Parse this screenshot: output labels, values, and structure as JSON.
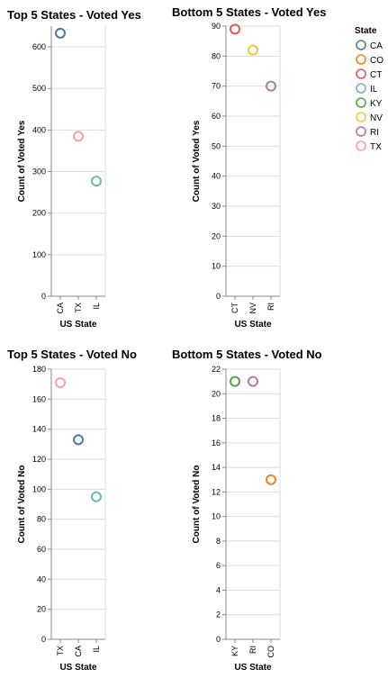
{
  "legend": {
    "title": "State",
    "items": [
      {
        "label": "CA",
        "color": "#4c78a8"
      },
      {
        "label": "CO",
        "color": "#f58518"
      },
      {
        "label": "CT",
        "color": "#e45756"
      },
      {
        "label": "IL",
        "color": "#72b7b2"
      },
      {
        "label": "KY",
        "color": "#54a24b"
      },
      {
        "label": "NV",
        "color": "#eeca3b"
      },
      {
        "label": "RI",
        "color": "#b279a2"
      },
      {
        "label": "TX",
        "color": "#ff9da6"
      }
    ]
  },
  "chart_data": [
    {
      "type": "scatter",
      "title": "Top 5 States - Voted Yes",
      "xlabel": "US State",
      "ylabel": "Count of Voted Yes",
      "categories": [
        "CA",
        "TX",
        "IL"
      ],
      "values": [
        633,
        385,
        277
      ],
      "ylim": [
        0,
        650
      ],
      "yticks": [
        0,
        100,
        200,
        300,
        400,
        500,
        600
      ],
      "grid": true
    },
    {
      "type": "scatter",
      "title": "Bottom 5 States - Voted Yes",
      "xlabel": "US State",
      "ylabel": "Count of Voted Yes",
      "categories": [
        "CT",
        "NV",
        "RI"
      ],
      "values": [
        89,
        82,
        70
      ],
      "ylim": [
        0,
        90
      ],
      "yticks": [
        0,
        10,
        20,
        30,
        40,
        50,
        60,
        70,
        80,
        90
      ],
      "grid": true
    },
    {
      "type": "scatter",
      "title": "Top 5 States - Voted No",
      "xlabel": "US State",
      "ylabel": "Count of Voted No",
      "categories": [
        "TX",
        "CA",
        "IL"
      ],
      "values": [
        171,
        133,
        95
      ],
      "ylim": [
        0,
        180
      ],
      "yticks": [
        0,
        20,
        40,
        60,
        80,
        100,
        120,
        140,
        160,
        180
      ],
      "grid": true
    },
    {
      "type": "scatter",
      "title": "Bottom 5 States - Voted No",
      "xlabel": "US State",
      "ylabel": "Count of Voted No",
      "categories": [
        "KY",
        "RI",
        "CO"
      ],
      "values": [
        21,
        21,
        13
      ],
      "ylim": [
        0,
        22
      ],
      "yticks": [
        0,
        2,
        4,
        6,
        8,
        10,
        12,
        14,
        16,
        18,
        20,
        22
      ],
      "grid": true
    }
  ]
}
